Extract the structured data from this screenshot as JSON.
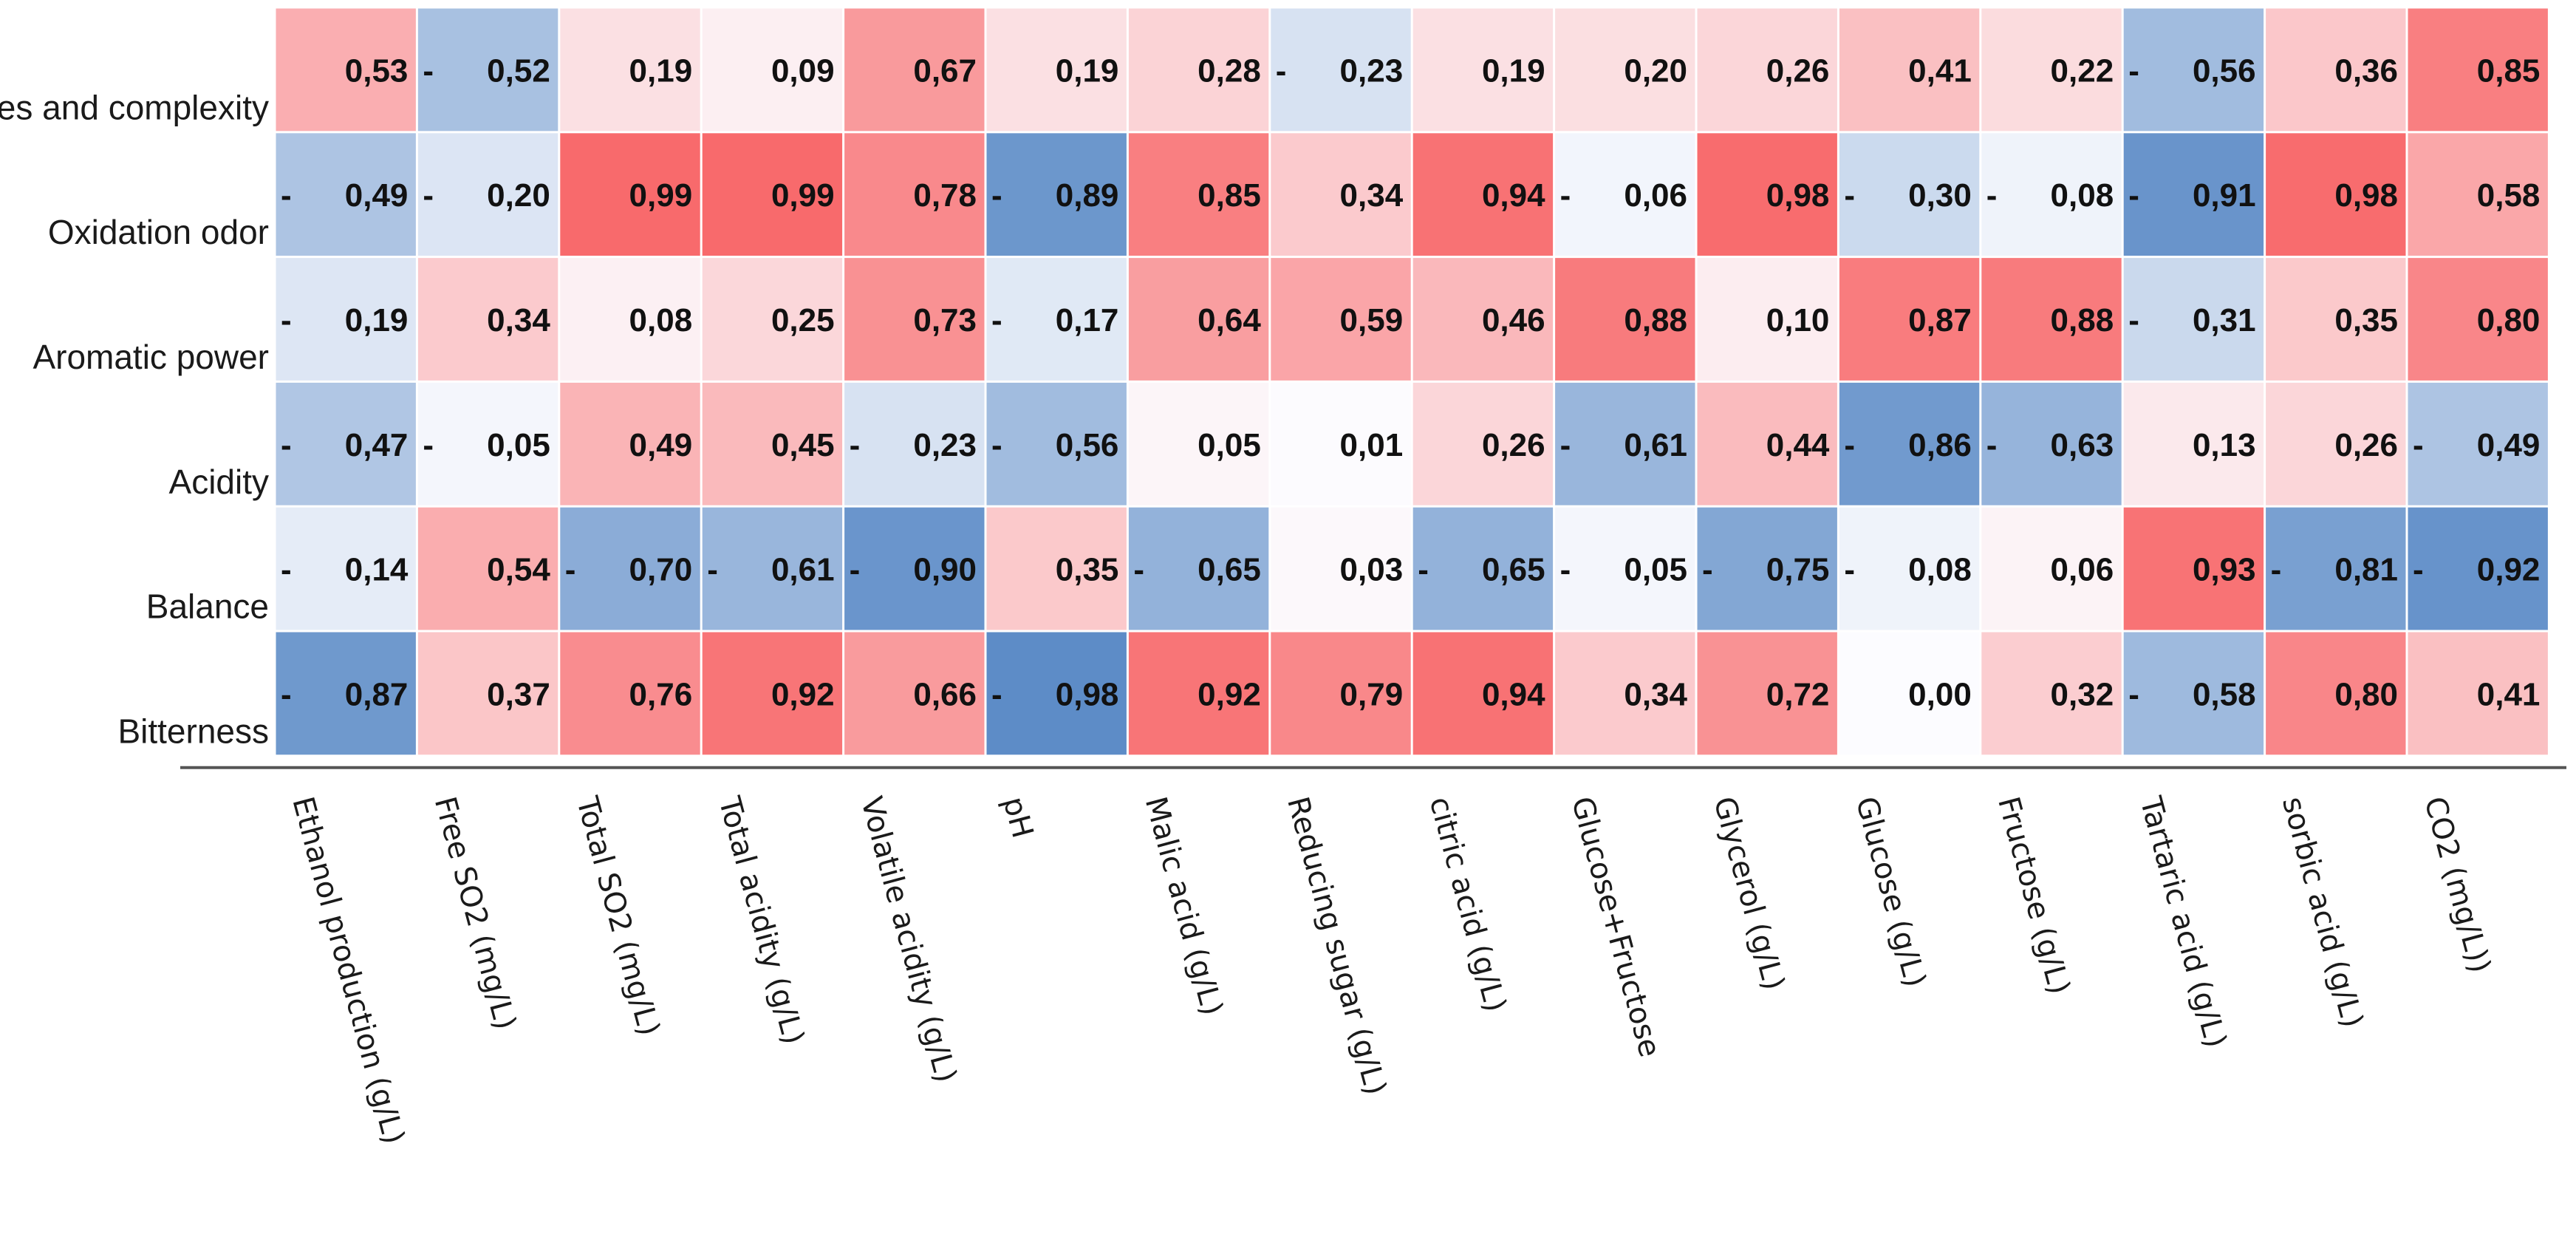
{
  "chart_data": {
    "type": "heatmap",
    "rows": [
      "Fines and complexity",
      "Oxidation odor",
      "Aromatic power",
      "Acidity",
      "Balance",
      "Bitterness"
    ],
    "columns": [
      "Ethanol production (g/L)",
      "Free SO2 (mg/L)",
      "Total SO2 (mg/L)",
      "Total acidity (g/L)",
      "Volatile acidity (g/L)",
      "pH",
      "Malic acid (g/L)",
      "Reducing sugar (g/L)",
      "citric acid (g/L)",
      "Glucose+Fructose",
      "Glycerol (g/L)",
      "Glucose (g/L)",
      "Fructose (g/L)",
      "Tartaric acid (g/L)",
      "sorbic acid (g/L)",
      "CO2 (mg/L))"
    ],
    "values": [
      [
        0.53,
        -0.52,
        0.19,
        0.09,
        0.67,
        0.19,
        0.28,
        -0.23,
        0.19,
        0.2,
        0.26,
        0.41,
        0.22,
        -0.56,
        0.36,
        0.85
      ],
      [
        -0.49,
        -0.2,
        0.99,
        0.99,
        0.78,
        -0.89,
        0.85,
        0.34,
        0.94,
        -0.06,
        0.98,
        -0.3,
        -0.08,
        -0.91,
        0.98,
        0.58
      ],
      [
        -0.19,
        0.34,
        0.08,
        0.25,
        0.73,
        -0.17,
        0.64,
        0.59,
        0.46,
        0.88,
        0.1,
        0.87,
        0.88,
        -0.31,
        0.35,
        0.8
      ],
      [
        -0.47,
        -0.05,
        0.49,
        0.45,
        -0.23,
        -0.56,
        0.05,
        0.01,
        0.26,
        -0.61,
        0.44,
        -0.86,
        -0.63,
        0.13,
        0.26,
        -0.49
      ],
      [
        -0.14,
        0.54,
        -0.7,
        -0.61,
        -0.9,
        0.35,
        -0.65,
        0.03,
        -0.65,
        -0.05,
        -0.75,
        -0.08,
        0.06,
        0.93,
        -0.81,
        -0.92
      ],
      [
        -0.87,
        0.37,
        0.76,
        0.92,
        0.66,
        -0.98,
        0.92,
        0.79,
        0.94,
        0.34,
        0.72,
        0.0,
        0.32,
        -0.58,
        0.8,
        0.41
      ]
    ],
    "labels": [
      [
        "0,53",
        "0,52",
        "0,19",
        "0,09",
        "0,67",
        "0,19",
        "0,28",
        "0,23",
        "0,19",
        "0,20",
        "0,26",
        "0,41",
        "0,22",
        "0,56",
        "0,36",
        "0,85"
      ],
      [
        "0,49",
        "0,20",
        "0,99",
        "0,99",
        "0,78",
        "0,89",
        "0,85",
        "0,34",
        "0,94",
        "0,06",
        "0,98",
        "0,30",
        "0,08",
        "0,91",
        "0,98",
        "0,58"
      ],
      [
        "0,19",
        "0,34",
        "0,08",
        "0,25",
        "0,73",
        "0,17",
        "0,64",
        "0,59",
        "0,46",
        "0,88",
        "0,10",
        "0,87",
        "0,88",
        "0,31",
        "0,35",
        "0,80"
      ],
      [
        "0,47",
        "0,05",
        "0,49",
        "0,45",
        "0,23",
        "0,56",
        "0,05",
        "0,01",
        "0,26",
        "0,61",
        "0,44",
        "0,86",
        "0,63",
        "0,13",
        "0,26",
        "0,49"
      ],
      [
        "0,14",
        "0,54",
        "0,70",
        "0,61",
        "0,90",
        "0,35",
        "0,65",
        "0,03",
        "0,65",
        "0,05",
        "0,75",
        "0,08",
        "0,06",
        "0,93",
        "0,81",
        "0,92"
      ],
      [
        "0,87",
        "0,37",
        "0,76",
        "0,92",
        "0,66",
        "0,98",
        "0,92",
        "0,79",
        "0,94",
        "0,34",
        "0,72",
        "0,00",
        "0,32",
        "0,58",
        "0,80",
        "0,41"
      ]
    ],
    "negative_marker": "-",
    "range": [
      -1,
      1
    ],
    "colors": {
      "positive": "#f8696b",
      "negative": "#5a8ac6",
      "neutral": "#fcfcff",
      "text": "#111111",
      "axis_line": "#555555"
    },
    "legend": "none"
  }
}
